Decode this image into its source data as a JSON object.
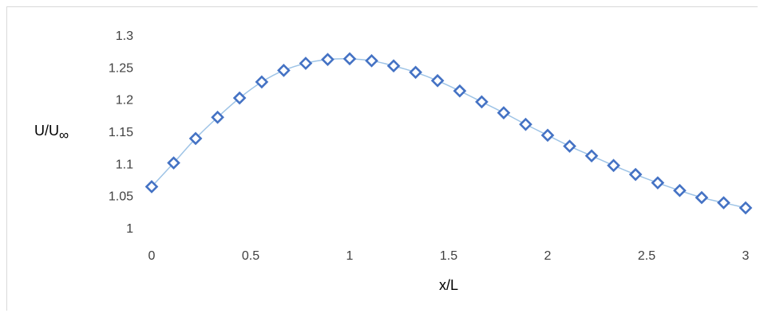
{
  "chart_data": {
    "type": "line",
    "xlabel": "x/L",
    "ylabel": "U/U∞",
    "ylabel_parts": {
      "main": "U/U",
      "subscript": "∞"
    },
    "xlim": [
      0,
      3
    ],
    "ylim": [
      1,
      1.3
    ],
    "x_ticks": [
      "0",
      "0.5",
      "1",
      "1.5",
      "2",
      "2.5",
      "3"
    ],
    "y_ticks": [
      "1",
      "1.05",
      "1.1",
      "1.15",
      "1.2",
      "1.25",
      "1.3"
    ],
    "grid": false,
    "legend": "none",
    "series": [
      {
        "marker": "diamond-open",
        "color": "#4472c4",
        "line_color": "#9dc3e6",
        "x": [
          0,
          0.111,
          0.222,
          0.333,
          0.444,
          0.556,
          0.667,
          0.778,
          0.889,
          1.0,
          1.111,
          1.222,
          1.333,
          1.444,
          1.556,
          1.667,
          1.778,
          1.889,
          2.0,
          2.111,
          2.222,
          2.333,
          2.444,
          2.556,
          2.667,
          2.778,
          2.889,
          3.0
        ],
        "y": [
          1.064,
          1.101,
          1.139,
          1.172,
          1.202,
          1.227,
          1.245,
          1.256,
          1.262,
          1.263,
          1.26,
          1.252,
          1.242,
          1.229,
          1.213,
          1.196,
          1.179,
          1.161,
          1.144,
          1.127,
          1.112,
          1.097,
          1.083,
          1.07,
          1.058,
          1.047,
          1.039,
          1.031
        ]
      }
    ]
  }
}
